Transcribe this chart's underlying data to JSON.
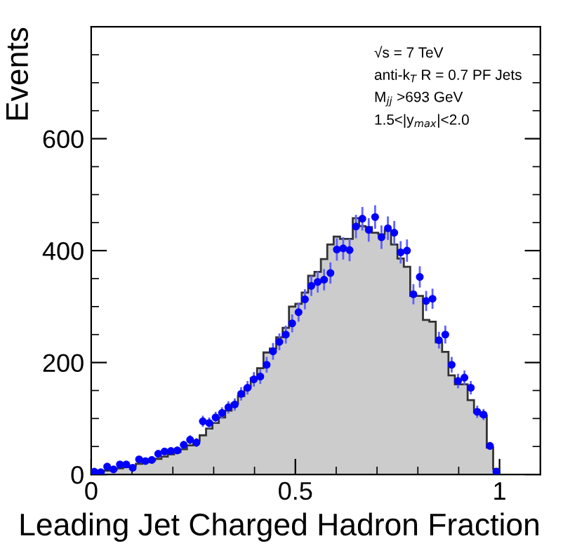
{
  "chart_data": {
    "type": "histogram",
    "xlabel": "Leading Jet Charged Hadron Fraction",
    "ylabel": "Events",
    "annotations": [
      "√s = 7 TeV",
      "anti-k$_{T}$ R = 0.7 PF Jets",
      "M$_{jj}$ >693 GeV",
      "1.5<|y$_{max}$|<2.0"
    ],
    "bins": [
      0,
      0.0156,
      0.0313,
      0.0469,
      0.0625,
      0.0781,
      0.0938,
      0.1094,
      0.125,
      0.1406,
      0.1563,
      0.1719,
      0.1875,
      0.2031,
      0.2188,
      0.2344,
      0.25,
      0.2656,
      0.2813,
      0.2969,
      0.3125,
      0.3281,
      0.3438,
      0.3594,
      0.375,
      0.3906,
      0.4063,
      0.4219,
      0.4375,
      0.4531,
      0.4688,
      0.4844,
      0.5,
      0.5156,
      0.5313,
      0.5469,
      0.5625,
      0.5781,
      0.5938,
      0.6094,
      0.625,
      0.6406,
      0.6563,
      0.6719,
      0.6875,
      0.7031,
      0.7188,
      0.7344,
      0.75,
      0.7656,
      0.7813,
      0.7969,
      0.8125,
      0.8281,
      0.8438,
      0.8594,
      0.875,
      0.8906,
      0.9063,
      0.9219,
      0.9375,
      0.9531,
      0.9688,
      0.9844,
      1
    ],
    "series": [
      {
        "type": "histogram",
        "color": "#cccccc",
        "values": [
          3,
          5,
          7,
          9,
          11,
          13,
          16,
          19,
          22,
          25,
          28,
          32,
          36,
          40,
          45,
          52,
          60,
          70,
          82,
          92,
          102,
          114,
          127,
          140,
          155,
          172,
          190,
          218,
          225,
          245,
          262,
          300,
          305,
          325,
          355,
          362,
          385,
          411,
          425,
          421,
          421,
          458,
          444,
          442,
          432,
          429,
          436,
          411,
          386,
          371,
          319,
          319,
          276,
          273,
          236,
          219,
          177,
          161,
          161,
          133,
          111,
          105,
          48,
          10
        ]
      },
      {
        "type": "scatter",
        "color": "#0000ff",
        "marker": "circle",
        "x": [
          0.0078,
          0.0234,
          0.0391,
          0.0547,
          0.0703,
          0.0859,
          0.1016,
          0.1172,
          0.1328,
          0.1484,
          0.1641,
          0.1797,
          0.1953,
          0.2109,
          0.2266,
          0.2422,
          0.2578,
          0.2734,
          0.2891,
          0.3047,
          0.3203,
          0.3359,
          0.3516,
          0.3672,
          0.3828,
          0.3984,
          0.4141,
          0.4297,
          0.4453,
          0.4609,
          0.4766,
          0.4922,
          0.5078,
          0.5234,
          0.5391,
          0.5547,
          0.5703,
          0.5859,
          0.6016,
          0.6172,
          0.6328,
          0.6484,
          0.6641,
          0.6797,
          0.6953,
          0.7109,
          0.7266,
          0.7422,
          0.7578,
          0.7734,
          0.7891,
          0.8047,
          0.8203,
          0.8359,
          0.8516,
          0.8672,
          0.8828,
          0.8984,
          0.9141,
          0.9297,
          0.9453,
          0.9609,
          0.9766,
          0.9922
        ],
        "values": [
          5,
          4,
          14,
          9,
          18,
          18,
          12,
          27,
          24,
          26,
          37,
          41,
          42,
          43,
          53,
          62,
          57,
          95,
          92,
          102,
          110,
          120,
          125,
          144,
          155,
          170,
          175,
          196,
          220,
          237,
          250,
          270,
          290,
          313,
          337,
          344,
          348,
          360,
          402,
          404,
          401,
          443,
          457,
          437,
          460,
          424,
          440,
          432,
          397,
          400,
          322,
          353,
          310,
          314,
          240,
          250,
          196,
          167,
          173,
          155,
          112,
          107,
          51,
          5
        ],
        "errors": [
          2,
          2,
          4,
          3,
          4,
          4,
          3,
          5,
          5,
          5,
          6,
          6,
          6,
          7,
          7,
          8,
          8,
          10,
          10,
          10,
          10,
          11,
          11,
          12,
          12,
          13,
          13,
          14,
          15,
          15,
          16,
          16,
          17,
          18,
          18,
          19,
          19,
          19,
          20,
          20,
          20,
          21,
          21,
          21,
          21,
          21,
          21,
          21,
          20,
          20,
          18,
          19,
          18,
          18,
          15,
          16,
          14,
          13,
          13,
          12,
          11,
          10,
          7,
          2
        ]
      }
    ],
    "xlim": [
      0,
      1.1
    ],
    "xticks": [
      0,
      0.5,
      1
    ],
    "ylim": [
      0,
      800
    ],
    "yticks": [
      0,
      200,
      400,
      600
    ],
    "grid": false
  }
}
